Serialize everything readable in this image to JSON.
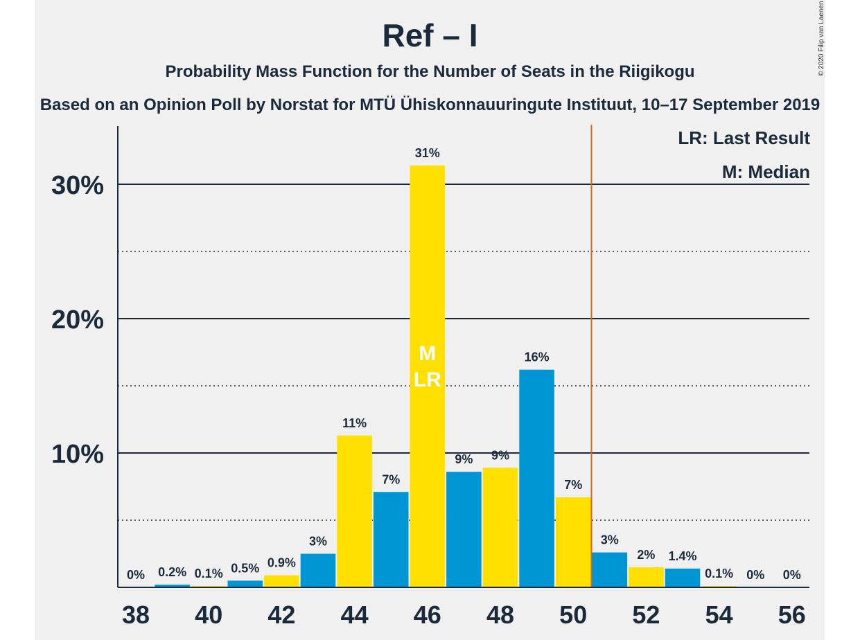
{
  "title": "Ref – I",
  "subtitle": "Probability Mass Function for the Number of Seats in the Riigikogu",
  "source": "Based on an Opinion Poll by Norstat for MTÜ Ühiskonnauuringute Instituut, 10–17 September 2019",
  "copyright": "© 2020 Filip van Laenen",
  "legend": {
    "last_result": "LR: Last Result",
    "median": "M: Median"
  },
  "colors": {
    "blue": "#0096d6",
    "yellow": "#ffe000",
    "axis": "#1b2a3a",
    "majority_line": "#d2691e",
    "marker_text": "#ffffff"
  },
  "chart_data": {
    "type": "bar",
    "x": [
      38,
      39,
      40,
      41,
      42,
      43,
      44,
      45,
      46,
      47,
      48,
      49,
      50,
      51,
      52,
      53,
      54,
      55,
      56
    ],
    "values": [
      0,
      0.2,
      0.1,
      0.5,
      0.9,
      2.5,
      11.3,
      7.1,
      31.4,
      8.6,
      8.9,
      16.2,
      6.7,
      2.6,
      1.5,
      1.4,
      0.1,
      0,
      0
    ],
    "labels": [
      "0%",
      "0.2%",
      "0.1%",
      "0.5%",
      "0.9%",
      "3%",
      "11%",
      "7%",
      "31%",
      "9%",
      "9%",
      "16%",
      "7%",
      "3%",
      "2%",
      "1.4%",
      "0.1%",
      "0%",
      "0%"
    ],
    "xtick_labels": [
      "38",
      "40",
      "42",
      "44",
      "46",
      "48",
      "50",
      "52",
      "54",
      "56"
    ],
    "ytick_values": [
      10,
      20,
      30
    ],
    "ytick_labels": [
      "10%",
      "20%",
      "30%"
    ],
    "ylim": [
      0,
      34
    ],
    "minor_grid": [
      5,
      15,
      25
    ],
    "majority_threshold": 50.5,
    "median_seat": 46,
    "median_label": "M",
    "last_result_seat": 46,
    "last_result_label": "LR"
  }
}
